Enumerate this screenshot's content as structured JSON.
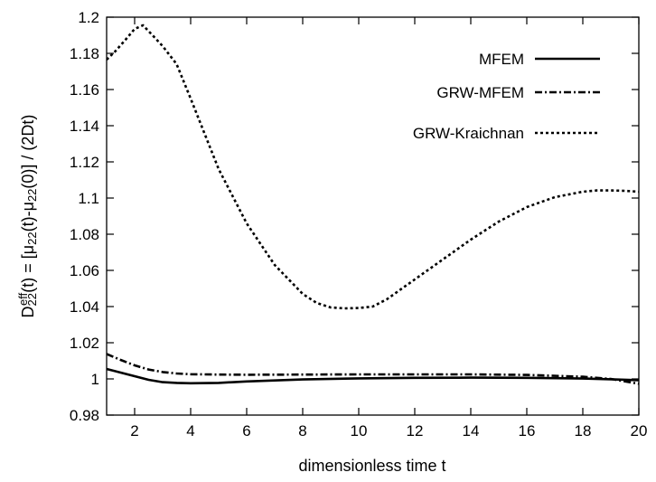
{
  "chart_data": {
    "type": "line",
    "title": "",
    "xlabel": "dimensionless time t",
    "ylabel_parts": [
      "D",
      "22",
      "eff",
      "(t) = [μ",
      "22",
      "(t)-μ",
      "22",
      "(0)] / (2Dt)"
    ],
    "xlim": [
      1,
      20
    ],
    "ylim": [
      0.98,
      1.2
    ],
    "xticks": [
      2,
      4,
      6,
      8,
      10,
      12,
      14,
      16,
      18,
      20
    ],
    "xtick_labels": [
      "2",
      "4",
      "6",
      "8",
      "10",
      "12",
      "14",
      "16",
      "18",
      "20"
    ],
    "yticks": [
      0.98,
      1.0,
      1.02,
      1.04,
      1.06,
      1.08,
      1.1,
      1.12,
      1.14,
      1.16,
      1.18,
      1.2
    ],
    "ytick_labels": [
      "0.98",
      "1",
      "1.02",
      "1.04",
      "1.06",
      "1.08",
      "1.1",
      "1.12",
      "1.14",
      "1.16",
      "1.18",
      "1.2"
    ],
    "grid": false,
    "legend_position": "top-right",
    "series": [
      {
        "name": "MFEM",
        "style": "solid",
        "x": [
          1,
          1.5,
          2,
          2.5,
          3,
          3.5,
          4,
          5,
          6,
          8,
          10,
          12,
          14,
          16,
          18,
          19,
          20
        ],
        "y": [
          1.0055,
          1.0035,
          1.0015,
          0.9995,
          0.9982,
          0.9978,
          0.9976,
          0.9978,
          0.9986,
          0.9997,
          1.0003,
          1.0006,
          1.0007,
          1.0006,
          1.0002,
          0.9998,
          0.9993
        ]
      },
      {
        "name": "GRW-MFEM",
        "style": "dashdot",
        "x": [
          1,
          1.5,
          2,
          2.5,
          3,
          3.5,
          4,
          5,
          6,
          8,
          10,
          12,
          14,
          16,
          18,
          19,
          20
        ],
        "y": [
          1.0138,
          1.0105,
          1.0075,
          1.0052,
          1.0038,
          1.003,
          1.0026,
          1.0024,
          1.0023,
          1.0024,
          1.0025,
          1.0025,
          1.0025,
          1.0022,
          1.0012,
          1.0,
          0.9973
        ]
      },
      {
        "name": "GRW-Kraichnan",
        "style": "dotted",
        "x": [
          1,
          1.3,
          1.7,
          2.0,
          2.3,
          2.7,
          3.0,
          3.5,
          4,
          5,
          6,
          7,
          8,
          8.5,
          9,
          9.5,
          10,
          10.5,
          11,
          12,
          13,
          14,
          15,
          16,
          17,
          18,
          18.5,
          19,
          19.5,
          20
        ],
        "y": [
          1.1765,
          1.181,
          1.188,
          1.1935,
          1.1955,
          1.189,
          1.184,
          1.174,
          1.155,
          1.116,
          1.086,
          1.063,
          1.047,
          1.042,
          1.0395,
          1.039,
          1.0392,
          1.04,
          1.044,
          1.055,
          1.066,
          1.077,
          1.087,
          1.095,
          1.1005,
          1.1035,
          1.1042,
          1.1042,
          1.104,
          1.1035
        ]
      }
    ]
  }
}
